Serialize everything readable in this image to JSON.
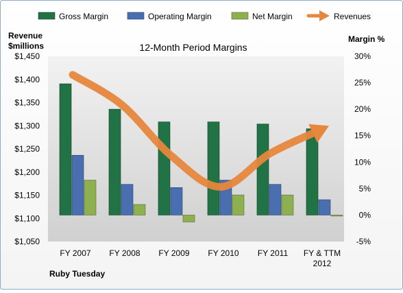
{
  "chart_data": {
    "type": "bar",
    "title": "12-Month Period Margins",
    "company": "Ruby Tuesday",
    "left_axis_title_line1": "Revenue",
    "left_axis_title_line2": "$millions",
    "right_axis_title": "Margin %",
    "categories": [
      "FY 2007",
      "FY 2008",
      "FY 2009",
      "FY 2010",
      "FY 2011",
      "FY & TTM 2012"
    ],
    "category_labels": [
      [
        "FY 2007"
      ],
      [
        "FY 2008"
      ],
      [
        "FY 2009"
      ],
      [
        "FY 2010"
      ],
      [
        "FY 2011"
      ],
      [
        "FY & TTM",
        "2012"
      ]
    ],
    "left_axis": {
      "label": "Revenue $millions",
      "range": [
        1050,
        1450
      ],
      "ticks": [
        "$1,050",
        "$1,100",
        "$1,150",
        "$1,200",
        "$1,250",
        "$1,300",
        "$1,350",
        "$1,400",
        "$1,450"
      ]
    },
    "right_axis": {
      "label": "Margin %",
      "range": [
        -5,
        30
      ],
      "ticks": [
        "-5%",
        "0%",
        "5%",
        "10%",
        "15%",
        "20%",
        "25%",
        "30%"
      ]
    },
    "series": [
      {
        "name": "Gross Margin",
        "type": "bar",
        "axis": "right",
        "color": "#217346",
        "values": [
          24.8,
          20.0,
          17.6,
          17.6,
          17.2,
          16.3
        ]
      },
      {
        "name": "Operating Margin",
        "type": "bar",
        "axis": "right",
        "color": "#4a6fb0",
        "values": [
          11.3,
          5.8,
          5.2,
          6.6,
          5.8,
          2.9
        ]
      },
      {
        "name": "Net Margin",
        "type": "bar",
        "axis": "right",
        "color": "#8fb050",
        "values": [
          6.6,
          2.0,
          -1.3,
          3.8,
          3.8,
          0.0
        ]
      },
      {
        "name": "Revenues",
        "type": "line-arrow",
        "axis": "left",
        "color": "#e7873d",
        "values": [
          1410,
          1345,
          1235,
          1168,
          1240,
          1290
        ]
      }
    ],
    "legend": "top",
    "grid": false
  }
}
